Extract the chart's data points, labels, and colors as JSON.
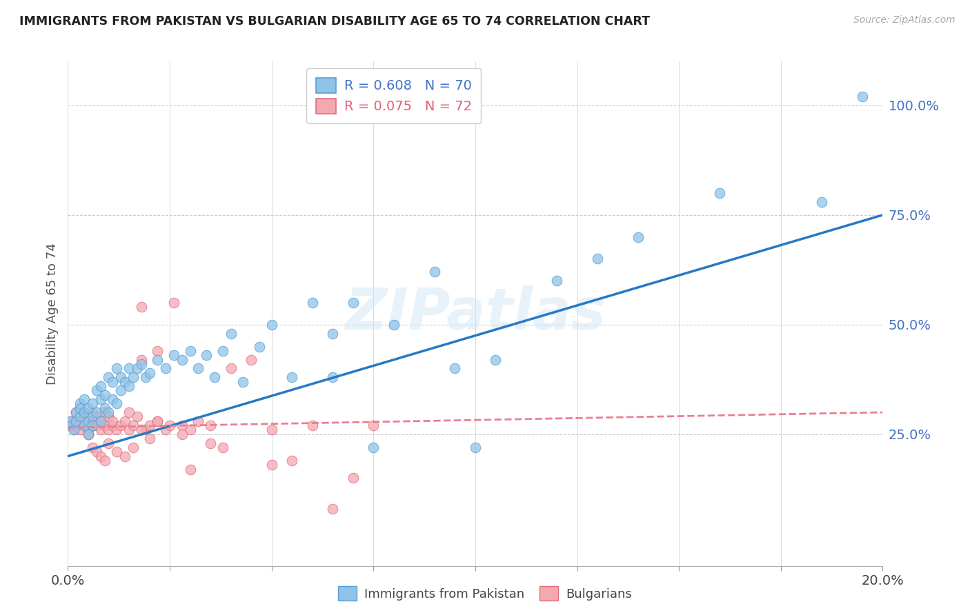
{
  "title": "IMMIGRANTS FROM PAKISTAN VS BULGARIAN DISABILITY AGE 65 TO 74 CORRELATION CHART",
  "source": "Source: ZipAtlas.com",
  "ylabel": "Disability Age 65 to 74",
  "ytick_labels": [
    "25.0%",
    "50.0%",
    "75.0%",
    "100.0%"
  ],
  "ytick_values": [
    0.25,
    0.5,
    0.75,
    1.0
  ],
  "xtick_positions": [
    0.0,
    0.025,
    0.05,
    0.075,
    0.1,
    0.125,
    0.15,
    0.175,
    0.2
  ],
  "xlim": [
    0.0,
    0.2
  ],
  "ylim": [
    -0.05,
    1.1
  ],
  "legend_line1": "R = 0.608   N = 70",
  "legend_line2": "R = 0.075   N = 72",
  "color_pakistan": "#8fc4e8",
  "color_pakistan_edge": "#5a9fd4",
  "color_bulgaria": "#f4a8b0",
  "color_bulgaria_edge": "#e07080",
  "color_line_pakistan": "#2679c5",
  "color_line_bulgaria": "#e88090",
  "watermark": "ZIPatlas",
  "pak_line_x0": 0.0,
  "pak_line_y0": 0.2,
  "pak_line_x1": 0.2,
  "pak_line_y1": 0.75,
  "bul_line_x0": 0.0,
  "bul_line_y0": 0.265,
  "bul_line_x1": 0.2,
  "bul_line_y1": 0.3,
  "pakistan_scatter_x": [
    0.0005,
    0.001,
    0.0015,
    0.002,
    0.002,
    0.003,
    0.003,
    0.003,
    0.004,
    0.004,
    0.004,
    0.005,
    0.005,
    0.005,
    0.006,
    0.006,
    0.006,
    0.007,
    0.007,
    0.008,
    0.008,
    0.008,
    0.009,
    0.009,
    0.01,
    0.01,
    0.011,
    0.011,
    0.012,
    0.012,
    0.013,
    0.013,
    0.014,
    0.015,
    0.015,
    0.016,
    0.017,
    0.018,
    0.019,
    0.02,
    0.022,
    0.024,
    0.026,
    0.028,
    0.03,
    0.032,
    0.034,
    0.036,
    0.038,
    0.04,
    0.043,
    0.047,
    0.05,
    0.055,
    0.06,
    0.065,
    0.065,
    0.07,
    0.075,
    0.08,
    0.09,
    0.095,
    0.1,
    0.105,
    0.12,
    0.13,
    0.14,
    0.16,
    0.185,
    0.195
  ],
  "pakistan_scatter_y": [
    0.28,
    0.27,
    0.26,
    0.3,
    0.28,
    0.29,
    0.32,
    0.31,
    0.27,
    0.3,
    0.33,
    0.28,
    0.31,
    0.25,
    0.29,
    0.32,
    0.27,
    0.35,
    0.3,
    0.28,
    0.33,
    0.36,
    0.31,
    0.34,
    0.3,
    0.38,
    0.33,
    0.37,
    0.32,
    0.4,
    0.35,
    0.38,
    0.37,
    0.4,
    0.36,
    0.38,
    0.4,
    0.41,
    0.38,
    0.39,
    0.42,
    0.4,
    0.43,
    0.42,
    0.44,
    0.4,
    0.43,
    0.38,
    0.44,
    0.48,
    0.37,
    0.45,
    0.5,
    0.38,
    0.55,
    0.48,
    0.38,
    0.55,
    0.22,
    0.5,
    0.62,
    0.4,
    0.22,
    0.42,
    0.6,
    0.65,
    0.7,
    0.8,
    0.78,
    1.02
  ],
  "bulgaria_scatter_x": [
    0.0005,
    0.001,
    0.0015,
    0.002,
    0.002,
    0.003,
    0.003,
    0.003,
    0.004,
    0.004,
    0.004,
    0.005,
    0.005,
    0.005,
    0.006,
    0.006,
    0.006,
    0.007,
    0.007,
    0.008,
    0.008,
    0.009,
    0.009,
    0.01,
    0.01,
    0.011,
    0.011,
    0.012,
    0.013,
    0.014,
    0.015,
    0.015,
    0.016,
    0.017,
    0.018,
    0.019,
    0.02,
    0.022,
    0.024,
    0.026,
    0.028,
    0.03,
    0.032,
    0.035,
    0.038,
    0.04,
    0.045,
    0.05,
    0.055,
    0.06,
    0.065,
    0.07,
    0.075,
    0.005,
    0.006,
    0.007,
    0.008,
    0.009,
    0.01,
    0.012,
    0.014,
    0.016,
    0.018,
    0.02,
    0.022,
    0.025,
    0.028,
    0.03,
    0.035,
    0.018,
    0.022,
    0.05
  ],
  "bulgaria_scatter_y": [
    0.27,
    0.28,
    0.26,
    0.3,
    0.27,
    0.29,
    0.26,
    0.31,
    0.28,
    0.27,
    0.3,
    0.26,
    0.29,
    0.25,
    0.28,
    0.27,
    0.3,
    0.27,
    0.29,
    0.26,
    0.28,
    0.27,
    0.3,
    0.26,
    0.29,
    0.27,
    0.28,
    0.26,
    0.27,
    0.28,
    0.26,
    0.3,
    0.27,
    0.29,
    0.54,
    0.26,
    0.27,
    0.28,
    0.26,
    0.55,
    0.27,
    0.26,
    0.28,
    0.27,
    0.22,
    0.4,
    0.42,
    0.26,
    0.19,
    0.27,
    0.08,
    0.15,
    0.27,
    0.25,
    0.22,
    0.21,
    0.2,
    0.19,
    0.23,
    0.21,
    0.2,
    0.22,
    0.26,
    0.24,
    0.28,
    0.27,
    0.25,
    0.17,
    0.23,
    0.42,
    0.44,
    0.18
  ]
}
